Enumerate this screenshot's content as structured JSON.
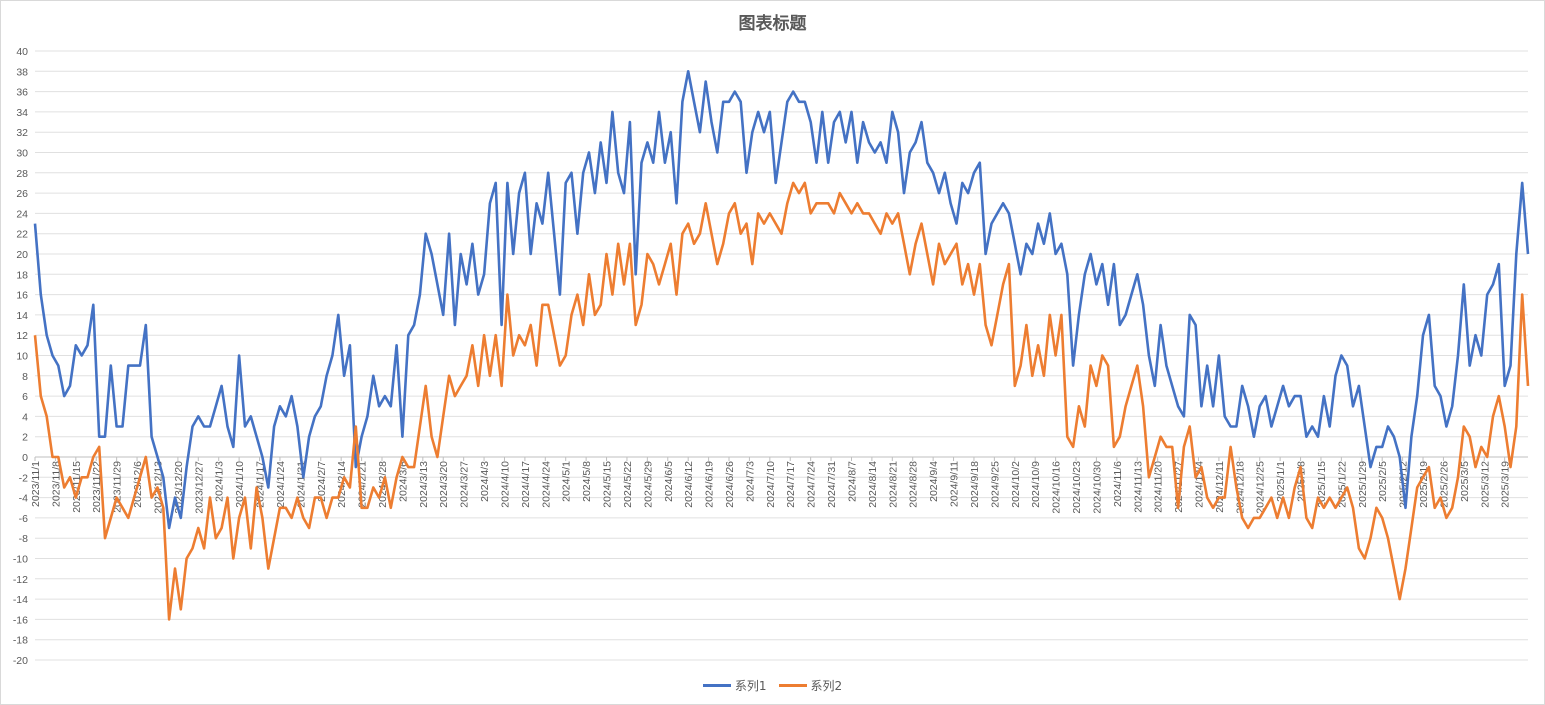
{
  "chart_data": {
    "type": "line",
    "title": "图表标题",
    "xlabel": "",
    "ylabel": "",
    "x_start_date": "2023/11/1",
    "x_step_days": 2,
    "x_tick_interval_days": 7,
    "x_tick_labels": [
      "2023/11/1",
      "2023/11/8",
      "2023/11/15",
      "2023/11/22",
      "2023/11/29",
      "2023/12/6",
      "2023/12/13",
      "2023/12/20",
      "2023/12/27",
      "2024/1/3",
      "2024/1/10",
      "2024/1/17",
      "2024/1/24",
      "2024/1/31",
      "2024/2/7",
      "2024/2/14",
      "2024/2/21",
      "2024/2/28",
      "2024/3/6",
      "2024/3/13",
      "2024/3/20",
      "2024/3/27",
      "2024/4/3",
      "2024/4/10",
      "2024/4/17",
      "2024/4/24",
      "2024/5/1",
      "2024/5/8",
      "2024/5/15",
      "2024/5/22",
      "2024/5/29",
      "2024/6/5",
      "2024/6/12",
      "2024/6/19",
      "2024/6/26",
      "2024/7/3",
      "2024/7/10",
      "2024/7/17",
      "2024/7/24",
      "2024/7/31",
      "2024/8/7",
      "2024/8/14",
      "2024/8/21",
      "2024/8/28",
      "2024/9/4",
      "2024/9/11",
      "2024/9/18",
      "2024/9/25",
      "2024/10/2",
      "2024/10/9",
      "2024/10/16",
      "2024/10/23",
      "2024/10/30",
      "2024/11/6",
      "2024/11/13",
      "2024/11/20",
      "2024/11/27",
      "2024/12/4",
      "2024/12/11",
      "2024/12/18",
      "2024/12/25",
      "2025/1/1",
      "2025/1/8",
      "2025/1/15",
      "2025/1/22",
      "2025/1/29",
      "2025/2/5",
      "2025/2/12",
      "2025/2/19",
      "2025/2/26",
      "2025/3/5",
      "2025/3/12",
      "2025/3/19"
    ],
    "ylim": [
      -20,
      40
    ],
    "y_tick_step": 2,
    "grid": true,
    "legend_position": "bottom",
    "series": [
      {
        "name": "系列1",
        "color": "#4472C4",
        "values": [
          23,
          16,
          12,
          10,
          9,
          6,
          7,
          11,
          10,
          11,
          15,
          2,
          2,
          9,
          3,
          3,
          9,
          9,
          9,
          13,
          2,
          0,
          -2,
          -7,
          -4,
          -6,
          -1,
          3,
          4,
          3,
          3,
          5,
          7,
          3,
          1,
          10,
          3,
          4,
          2,
          0,
          -3,
          3,
          5,
          4,
          6,
          3,
          -2,
          2,
          4,
          5,
          8,
          10,
          14,
          8,
          11,
          -1,
          2,
          4,
          8,
          5,
          6,
          5,
          11,
          2,
          12,
          13,
          16,
          22,
          20,
          17,
          14,
          22,
          13,
          20,
          17,
          21,
          16,
          18,
          25,
          27,
          13,
          27,
          20,
          26,
          28,
          20,
          25,
          23,
          28,
          22,
          16,
          27,
          28,
          22,
          28,
          30,
          26,
          31,
          27,
          34,
          28,
          26,
          33,
          18,
          29,
          31,
          29,
          34,
          29,
          32,
          25,
          35,
          38,
          35,
          32,
          37,
          33,
          30,
          35,
          35,
          36,
          35,
          28,
          32,
          34,
          32,
          34,
          27,
          31,
          35,
          36,
          35,
          35,
          33,
          29,
          34,
          29,
          33,
          34,
          31,
          34,
          29,
          33,
          31,
          30,
          31,
          29,
          34,
          32,
          26,
          30,
          31,
          33,
          29,
          28,
          26,
          28,
          25,
          23,
          27,
          26,
          28,
          29,
          20,
          23,
          24,
          25,
          24,
          21,
          18,
          21,
          20,
          23,
          21,
          24,
          20,
          21,
          18,
          9,
          14,
          18,
          20,
          17,
          19,
          15,
          19,
          13,
          14,
          16,
          18,
          15,
          10,
          7,
          13,
          9,
          7,
          5,
          4,
          14,
          13,
          5,
          9,
          5,
          10,
          4,
          3,
          3,
          7,
          5,
          2,
          5,
          6,
          3,
          5,
          7,
          5,
          6,
          6,
          2,
          3,
          2,
          6,
          3,
          8,
          10,
          9,
          5,
          7,
          3,
          -1,
          1,
          1,
          3,
          2,
          0,
          -5,
          2,
          6,
          12,
          14,
          7,
          6,
          3,
          5,
          10,
          17,
          9,
          12,
          10,
          16,
          17,
          19,
          7,
          9,
          20,
          27,
          20
        ]
      },
      {
        "name": "系列2",
        "color": "#ED7D31",
        "values": [
          12,
          6,
          4,
          0,
          0,
          -3,
          -2,
          -4,
          -2,
          -2,
          0,
          1,
          -8,
          -6,
          -4,
          -5,
          -6,
          -4,
          -2,
          0,
          -4,
          -3,
          -5,
          -16,
          -11,
          -15,
          -10,
          -9,
          -7,
          -9,
          -4,
          -8,
          -7,
          -4,
          -10,
          -6,
          -4,
          -9,
          -3,
          -6,
          -11,
          -8,
          -5,
          -5,
          -6,
          -4,
          -6,
          -7,
          -4,
          -4,
          -6,
          -4,
          -4,
          -2,
          -3,
          3,
          -5,
          -5,
          -3,
          -4,
          -2,
          -5,
          -2,
          0,
          -1,
          -1,
          3,
          7,
          2,
          0,
          4,
          8,
          6,
          7,
          8,
          11,
          7,
          12,
          8,
          12,
          7,
          16,
          10,
          12,
          11,
          13,
          9,
          15,
          15,
          12,
          9,
          10,
          14,
          16,
          13,
          18,
          14,
          15,
          20,
          16,
          21,
          17,
          21,
          13,
          15,
          20,
          19,
          17,
          19,
          21,
          16,
          22,
          23,
          21,
          22,
          25,
          22,
          19,
          21,
          24,
          25,
          22,
          23,
          19,
          24,
          23,
          24,
          23,
          22,
          25,
          27,
          26,
          27,
          24,
          25,
          25,
          25,
          24,
          26,
          25,
          24,
          25,
          24,
          24,
          23,
          22,
          24,
          23,
          24,
          21,
          18,
          21,
          23,
          20,
          17,
          21,
          19,
          20,
          21,
          17,
          19,
          16,
          19,
          13,
          11,
          14,
          17,
          19,
          7,
          9,
          13,
          8,
          11,
          8,
          14,
          10,
          14,
          2,
          1,
          5,
          3,
          9,
          7,
          10,
          9,
          1,
          2,
          5,
          7,
          9,
          5,
          -2,
          0,
          2,
          1,
          1,
          -5,
          1,
          3,
          -2,
          -1,
          -4,
          -5,
          -4,
          -4,
          1,
          -3,
          -6,
          -7,
          -6,
          -6,
          -5,
          -4,
          -6,
          -4,
          -6,
          -3,
          -1,
          -6,
          -7,
          -4,
          -5,
          -4,
          -5,
          -4,
          -3,
          -5,
          -9,
          -10,
          -8,
          -5,
          -6,
          -8,
          -11,
          -14,
          -11,
          -7,
          -3,
          -2,
          -1,
          -5,
          -4,
          -6,
          -5,
          -2,
          3,
          2,
          -1,
          1,
          0,
          4,
          6,
          3,
          -1,
          3,
          16,
          7
        ]
      }
    ]
  }
}
